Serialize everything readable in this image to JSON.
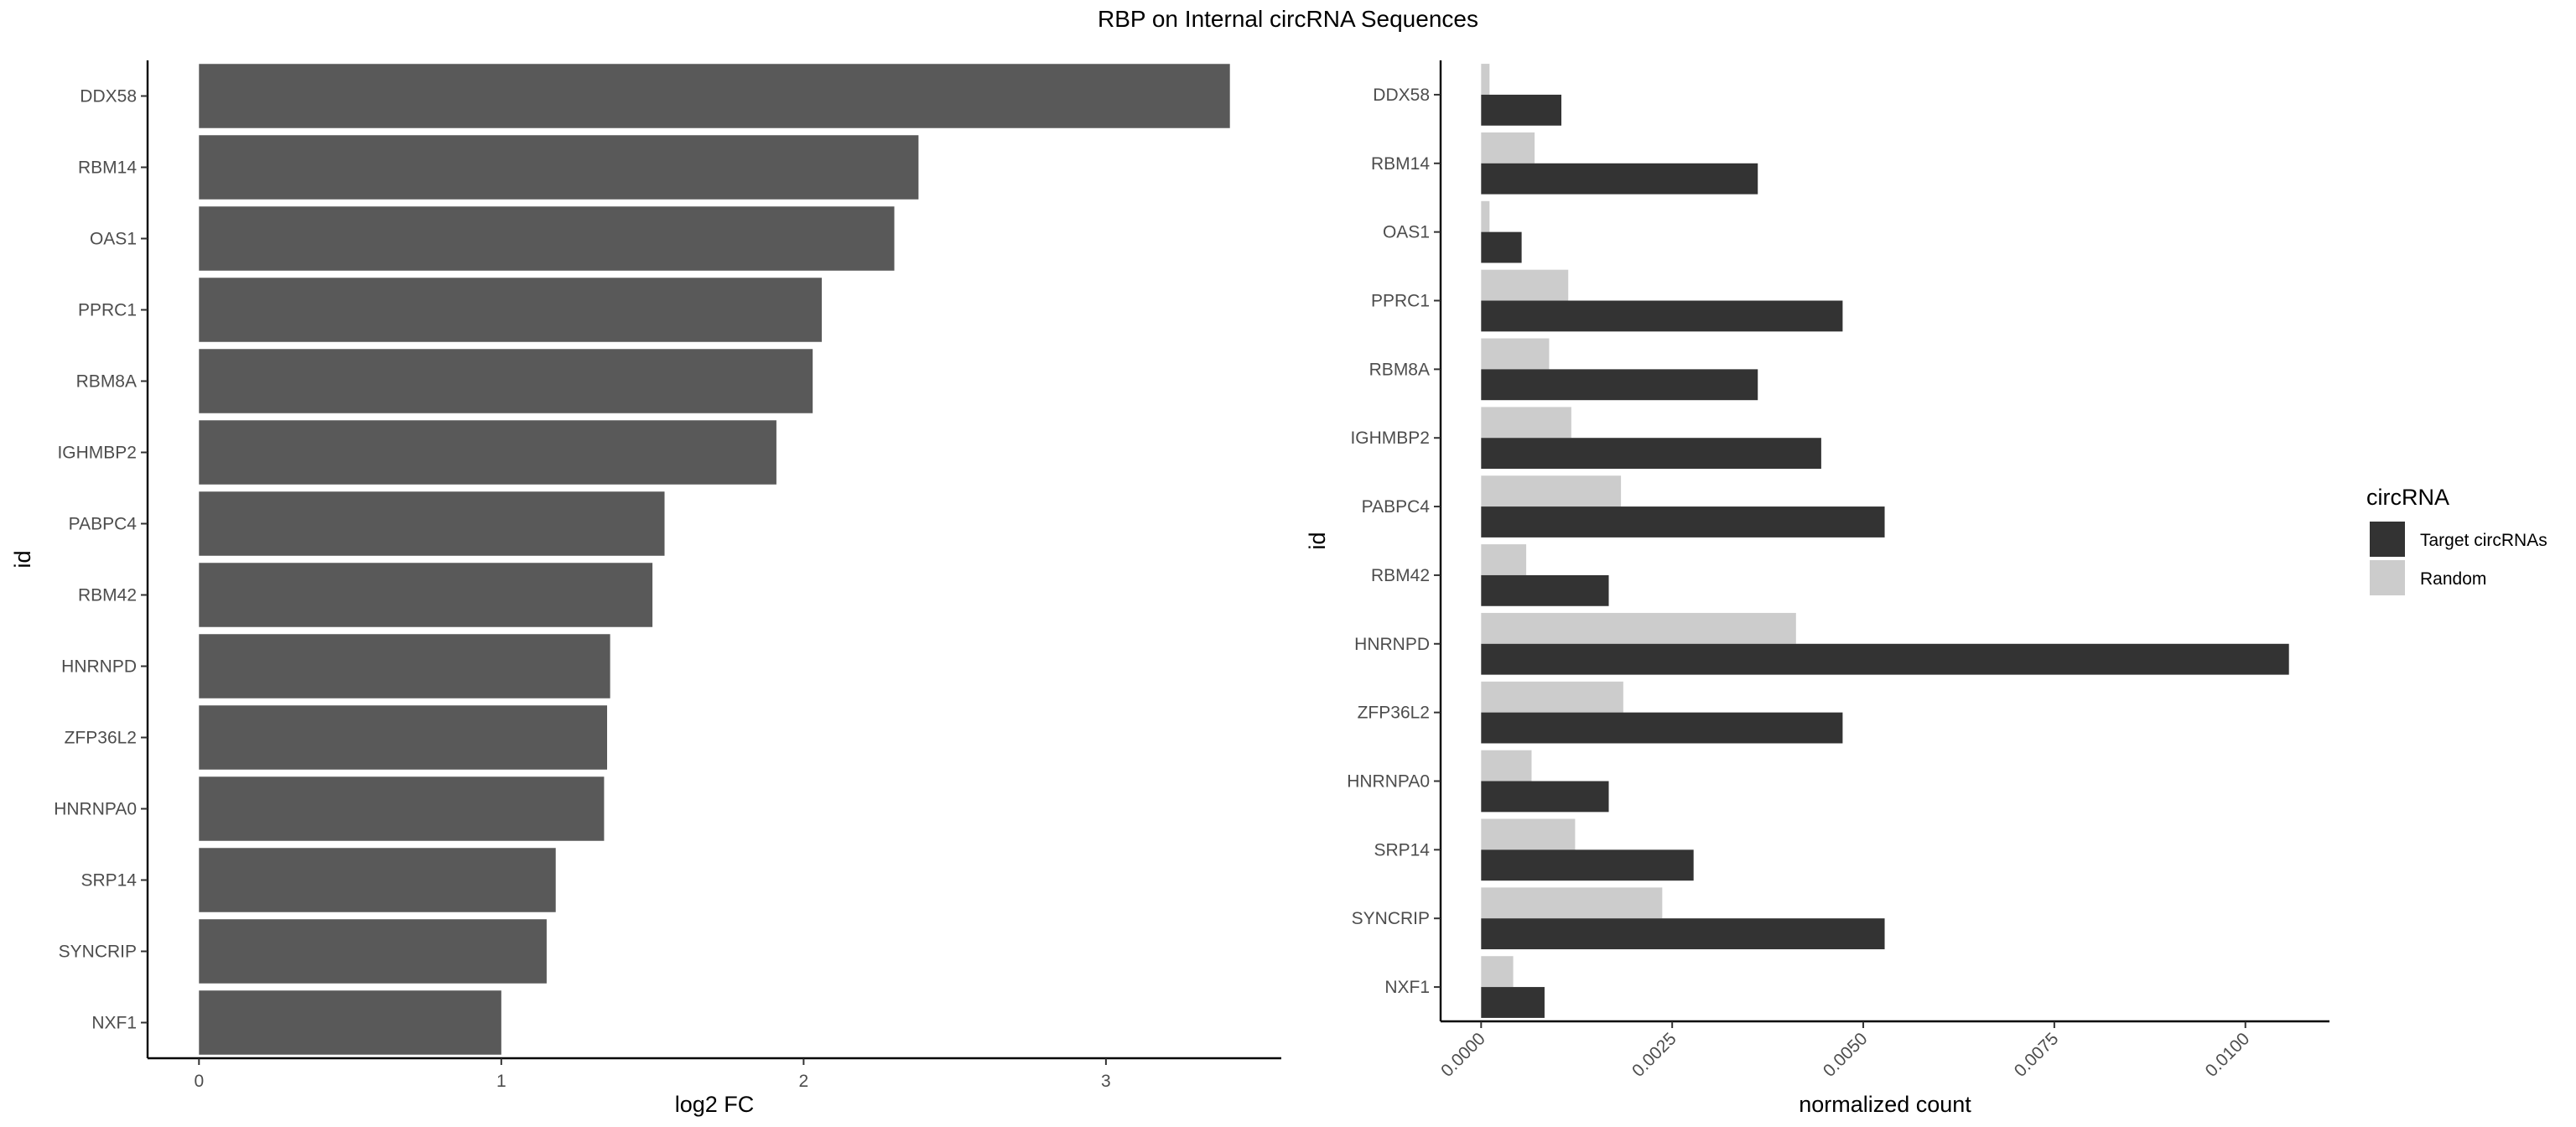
{
  "title": "RBP on Internal circRNA Sequences",
  "colors": {
    "left_bar": "#595959",
    "target": "#333333",
    "random": "#cccccc",
    "axis": "#000000",
    "tick_text": "#4d4d4d"
  },
  "chart_data": [
    {
      "type": "bar",
      "orientation": "horizontal",
      "categories": [
        "DDX58",
        "RBM14",
        "OAS1",
        "PPRC1",
        "RBM8A",
        "IGHMBP2",
        "PABPC4",
        "RBM42",
        "HNRNPD",
        "ZFP36L2",
        "HNRNPA0",
        "SRP14",
        "SYNCRIP",
        "NXF1"
      ],
      "values": [
        3.41,
        2.38,
        2.3,
        2.06,
        2.03,
        1.91,
        1.54,
        1.5,
        1.36,
        1.35,
        1.34,
        1.18,
        1.15,
        1.0
      ],
      "xlabel": "log2 FC",
      "ylabel": "id",
      "xlim": [
        -0.17,
        3.58
      ],
      "xticks": [
        "0",
        "1",
        "2",
        "3"
      ],
      "grid": false
    },
    {
      "type": "bar",
      "orientation": "horizontal",
      "grouped": true,
      "categories": [
        "DDX58",
        "RBM14",
        "OAS1",
        "PPRC1",
        "RBM8A",
        "IGHMBP2",
        "PABPC4",
        "RBM42",
        "HNRNPD",
        "ZFP36L2",
        "HNRNPA0",
        "SRP14",
        "SYNCRIP",
        "NXF1"
      ],
      "series": [
        {
          "name": "Target circRNAs",
          "values": [
            0.00105,
            0.00362,
            0.00053,
            0.00473,
            0.00362,
            0.00445,
            0.00528,
            0.00167,
            0.01057,
            0.00473,
            0.00167,
            0.00278,
            0.00528,
            0.00083
          ]
        },
        {
          "name": "Random",
          "values": [
            0.00011,
            0.0007,
            0.00011,
            0.00114,
            0.00089,
            0.00118,
            0.00183,
            0.00059,
            0.00412,
            0.00186,
            0.00066,
            0.00123,
            0.00237,
            0.00042
          ]
        }
      ],
      "xlabel": "normalized count",
      "ylabel": "id",
      "xlim": [
        -0.00053,
        0.0111
      ],
      "xticks": [
        "0.0000",
        "0.0025",
        "0.0050",
        "0.0075",
        "0.0100"
      ],
      "grid": false,
      "legend": {
        "title": "circRNA",
        "position": "right",
        "items": [
          "Target circRNAs",
          "Random"
        ]
      }
    }
  ]
}
